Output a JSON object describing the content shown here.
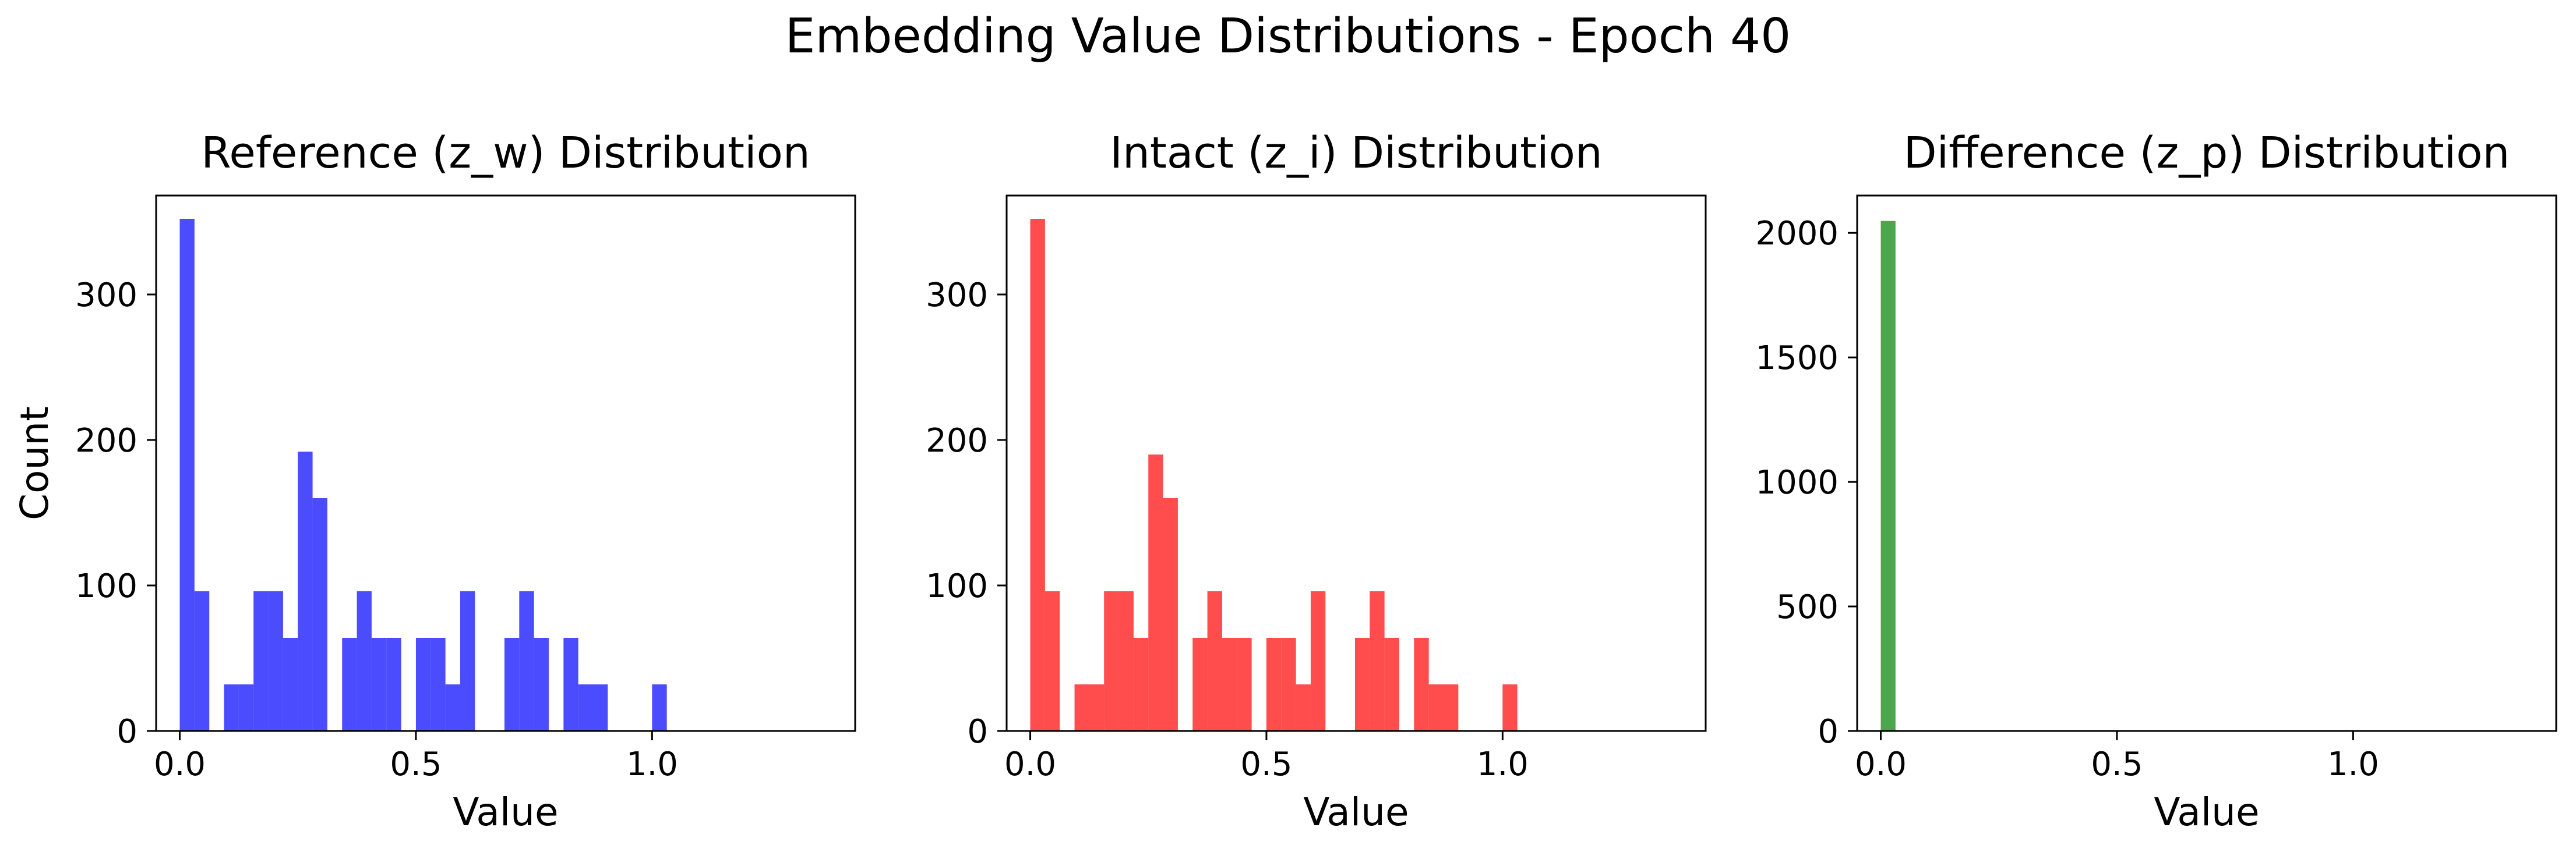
{
  "title": "Embedding Value Distributions - Epoch 40",
  "chart_data": [
    {
      "type": "bar",
      "title": "Reference (z_w) Distribution",
      "xlabel": "Value",
      "ylabel": "Count",
      "color": "#0000ff",
      "xlim": [
        -0.05,
        1.43
      ],
      "ylim": [
        0,
        368
      ],
      "xticks": [
        0.0,
        0.5,
        1.0
      ],
      "xtick_labels": [
        "0.0",
        "0.5",
        "1.0"
      ],
      "yticks": [
        0,
        100,
        200,
        300
      ],
      "ytick_labels": [
        "0",
        "100",
        "200",
        "300"
      ],
      "bin_width": 0.03125,
      "bin_starts": [
        0.0,
        0.03125,
        0.09375,
        0.125,
        0.15625,
        0.1875,
        0.21875,
        0.25,
        0.28125,
        0.34375,
        0.375,
        0.40625,
        0.4375,
        0.5,
        0.53125,
        0.5625,
        0.59375,
        0.6875,
        0.71875,
        0.75,
        0.8125,
        0.84375,
        0.875,
        1.0
      ],
      "counts": [
        352,
        96,
        32,
        32,
        96,
        96,
        64,
        192,
        160,
        64,
        96,
        64,
        64,
        64,
        64,
        32,
        96,
        64,
        96,
        64,
        64,
        32,
        32,
        32
      ],
      "grid": false
    },
    {
      "type": "bar",
      "title": "Intact (z_i) Distribution",
      "xlabel": "Value",
      "ylabel": "",
      "color": "#ff0000",
      "xlim": [
        -0.05,
        1.43
      ],
      "ylim": [
        0,
        368
      ],
      "xticks": [
        0.0,
        0.5,
        1.0
      ],
      "xtick_labels": [
        "0.0",
        "0.5",
        "1.0"
      ],
      "yticks": [
        0,
        100,
        200,
        300
      ],
      "ytick_labels": [
        "0",
        "100",
        "200",
        "300"
      ],
      "bin_width": 0.03125,
      "bin_starts": [
        0.0,
        0.03125,
        0.09375,
        0.125,
        0.15625,
        0.1875,
        0.21875,
        0.25,
        0.28125,
        0.34375,
        0.375,
        0.40625,
        0.4375,
        0.5,
        0.53125,
        0.5625,
        0.59375,
        0.6875,
        0.71875,
        0.75,
        0.8125,
        0.84375,
        0.875,
        1.0
      ],
      "counts": [
        352,
        96,
        32,
        32,
        96,
        96,
        64,
        190,
        160,
        64,
        96,
        64,
        64,
        64,
        64,
        32,
        96,
        64,
        96,
        64,
        64,
        32,
        32,
        32
      ],
      "grid": false
    },
    {
      "type": "bar",
      "title": "Difference (z_p) Distribution",
      "xlabel": "Value",
      "ylabel": "",
      "color": "#008000",
      "xlim": [
        -0.05,
        1.43
      ],
      "ylim": [
        0,
        2150
      ],
      "xticks": [
        0.0,
        0.5,
        1.0
      ],
      "xtick_labels": [
        "0.0",
        "0.5",
        "1.0"
      ],
      "yticks": [
        0,
        500,
        1000,
        1500,
        2000
      ],
      "ytick_labels": [
        "0",
        "500",
        "1000",
        "1500",
        "2000"
      ],
      "bin_width": 0.03125,
      "bin_starts": [
        0.0
      ],
      "counts": [
        2048
      ],
      "grid": false
    }
  ]
}
